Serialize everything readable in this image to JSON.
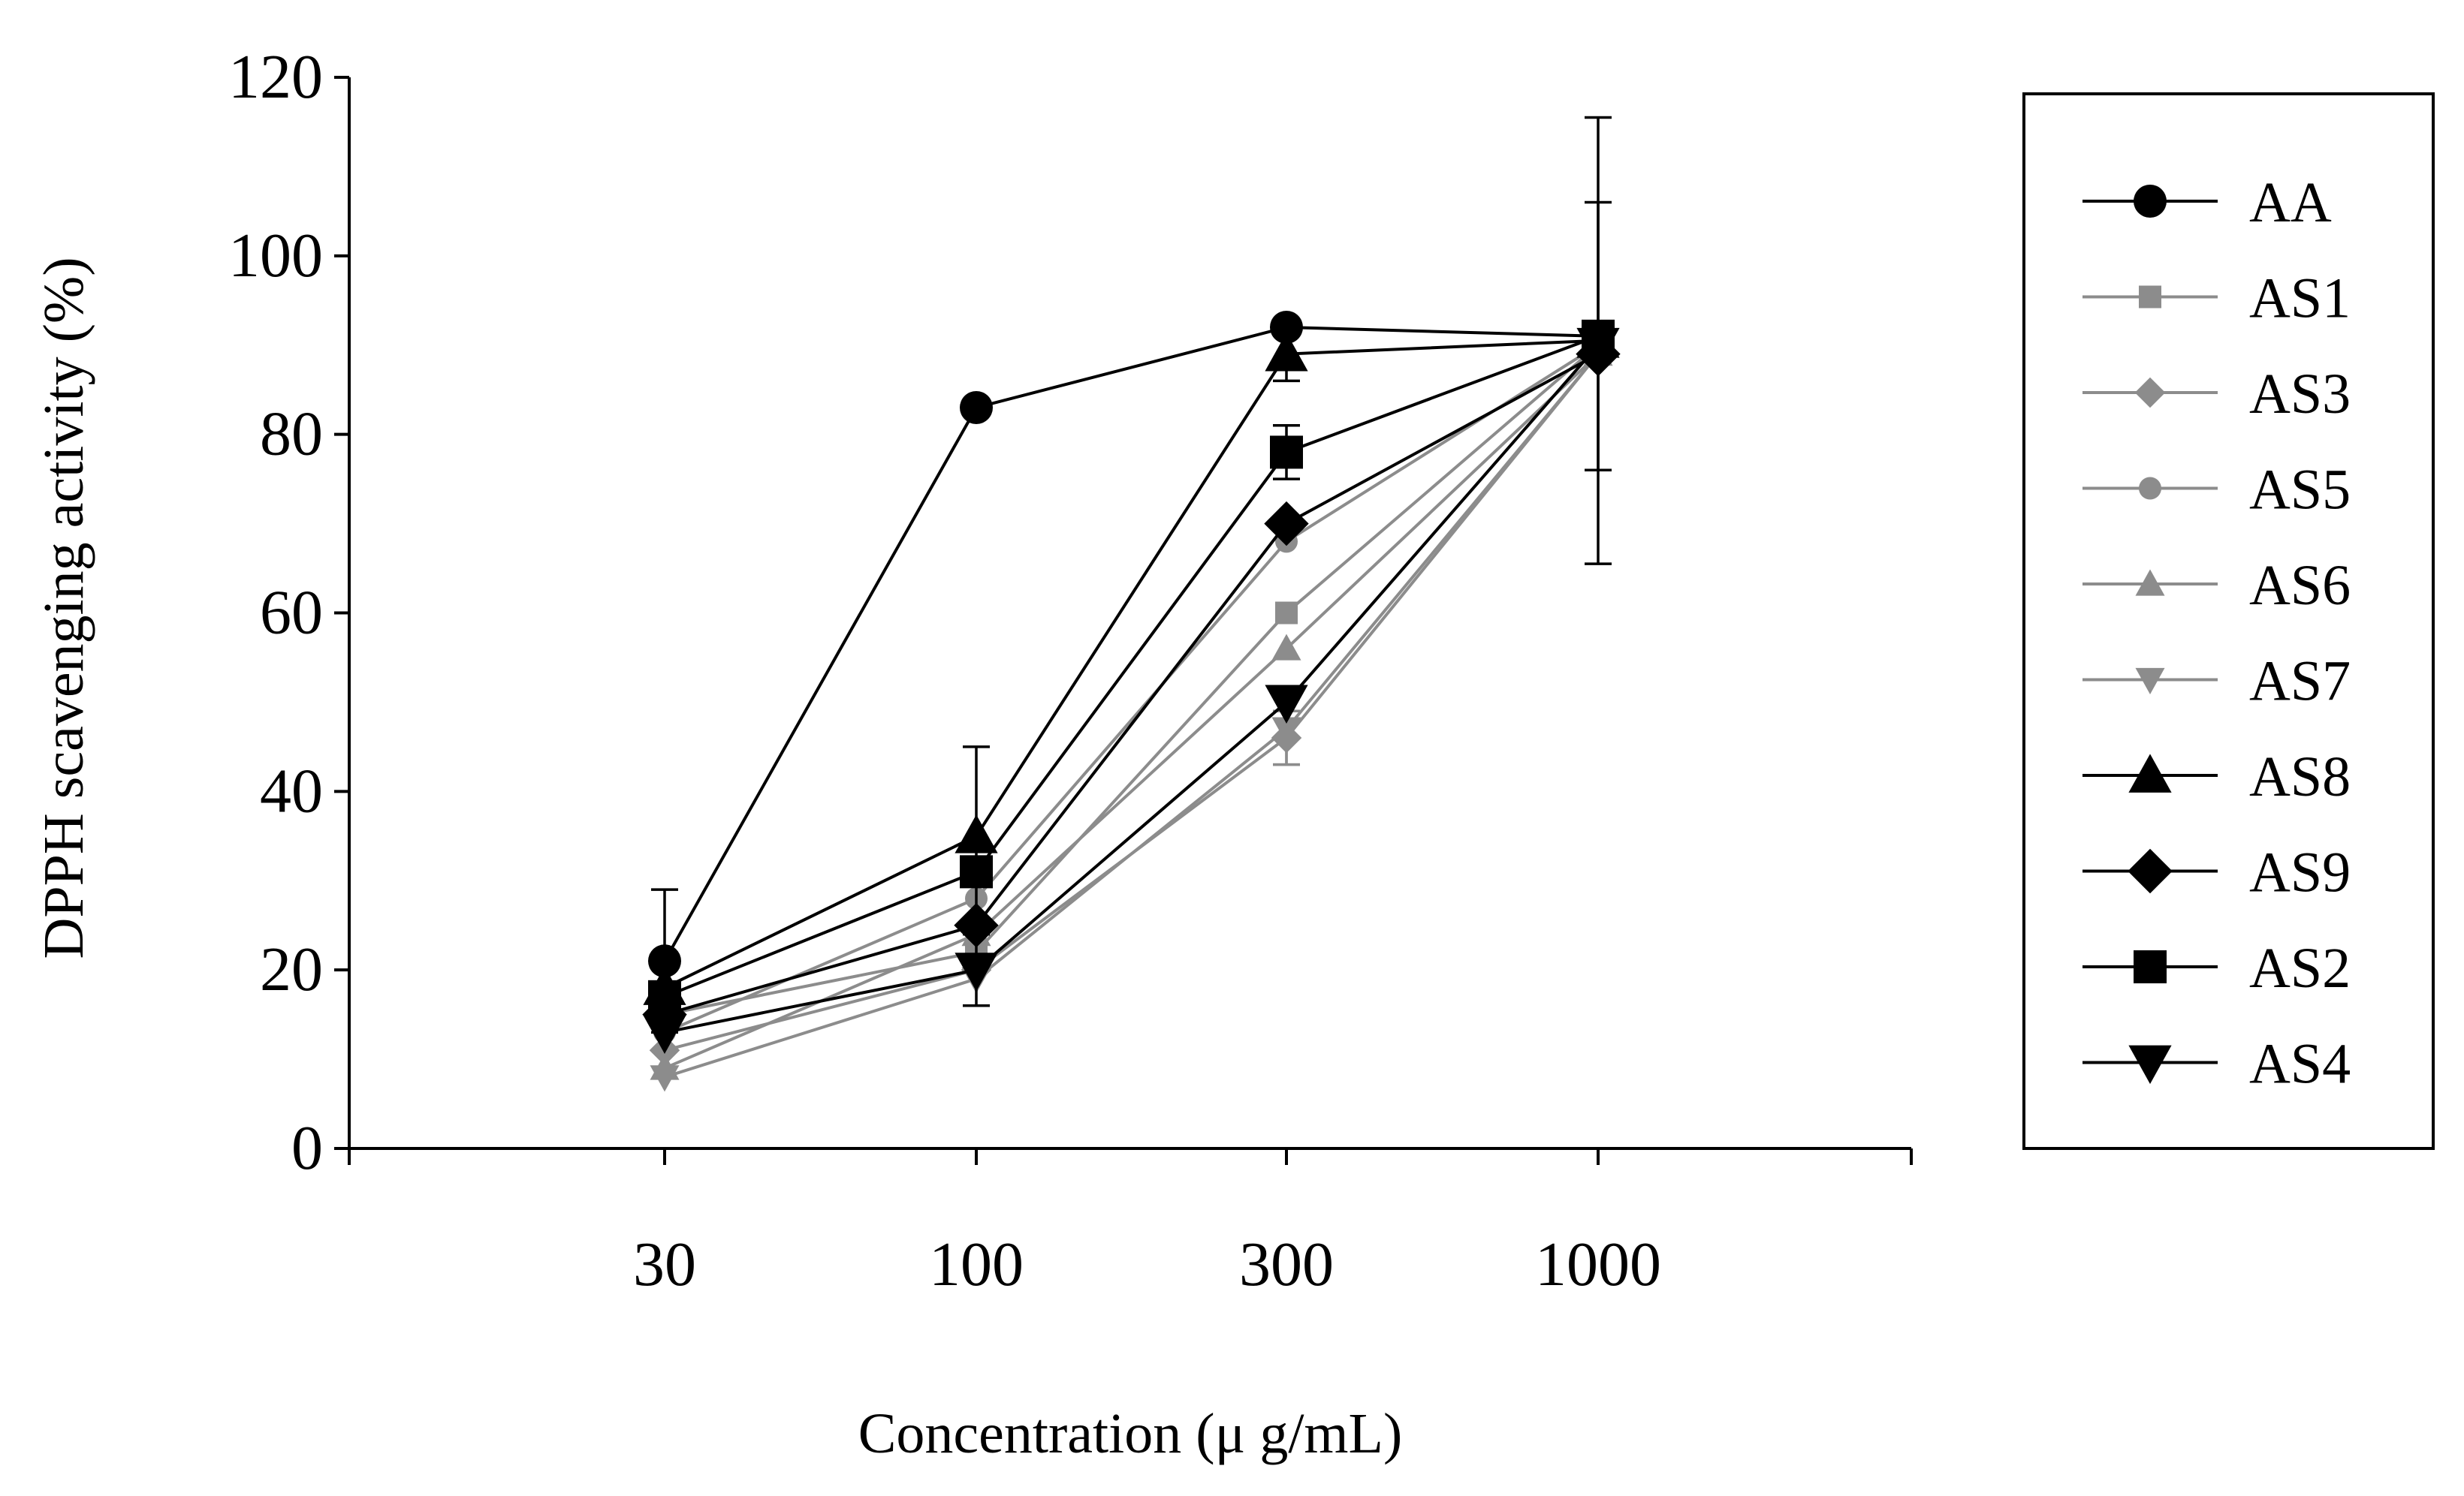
{
  "chart_data": {
    "type": "line",
    "title": "",
    "xlabel": "Concentration (μ g/mL)",
    "ylabel": "DPPH scavenging activity (%)",
    "x_ticks": [
      "30",
      "100",
      "300",
      "1000"
    ],
    "ylim": [
      0,
      120
    ],
    "y_ticks": [
      "0",
      "20",
      "40",
      "60",
      "80",
      "100",
      "120"
    ],
    "grid": false,
    "legend_position": "right",
    "series": [
      {
        "name": "AA",
        "color": "#000000",
        "marker": "circle",
        "size": "large",
        "values": [
          21,
          83,
          92,
          91
        ],
        "errors": [
          8,
          0,
          0,
          0
        ]
      },
      {
        "name": "AS1",
        "color": "#8c8c8c",
        "marker": "square",
        "size": "small",
        "values": [
          15,
          22,
          60,
          90
        ],
        "errors": [
          0,
          0,
          0,
          0
        ]
      },
      {
        "name": "AS3",
        "color": "#8c8c8c",
        "marker": "diamond",
        "size": "small",
        "values": [
          11,
          20,
          46,
          89
        ],
        "errors": [
          0,
          0,
          3,
          0
        ]
      },
      {
        "name": "AS5",
        "color": "#8c8c8c",
        "marker": "circle",
        "size": "small",
        "values": [
          13,
          28,
          68,
          90
        ],
        "errors": [
          0,
          0,
          0,
          0
        ]
      },
      {
        "name": "AS6",
        "color": "#8c8c8c",
        "marker": "triangle-up",
        "size": "small",
        "values": [
          9,
          24,
          56,
          89
        ],
        "errors": [
          0,
          0,
          0,
          0
        ]
      },
      {
        "name": "AS7",
        "color": "#8c8c8c",
        "marker": "triangle-down",
        "size": "small",
        "values": [
          8,
          19,
          47,
          89
        ],
        "errors": [
          0,
          0,
          4,
          0
        ]
      },
      {
        "name": "AS8",
        "color": "#000000",
        "marker": "triangle-up",
        "size": "large",
        "values": [
          18,
          35,
          89,
          90.5
        ],
        "errors": [
          0,
          10,
          3,
          25
        ]
      },
      {
        "name": "AS9",
        "color": "#000000",
        "marker": "diamond",
        "size": "large",
        "values": [
          15,
          25,
          70,
          89
        ],
        "errors": [
          0,
          0,
          0,
          0
        ]
      },
      {
        "name": "AS2",
        "color": "#000000",
        "marker": "square",
        "size": "large",
        "values": [
          17,
          31,
          78,
          91
        ],
        "errors": [
          0,
          0,
          3,
          15
        ]
      },
      {
        "name": "AS4",
        "color": "#000000",
        "marker": "triangle-down",
        "size": "large",
        "values": [
          13,
          20,
          50,
          90
        ],
        "errors": [
          0,
          4,
          0,
          0
        ]
      }
    ]
  }
}
